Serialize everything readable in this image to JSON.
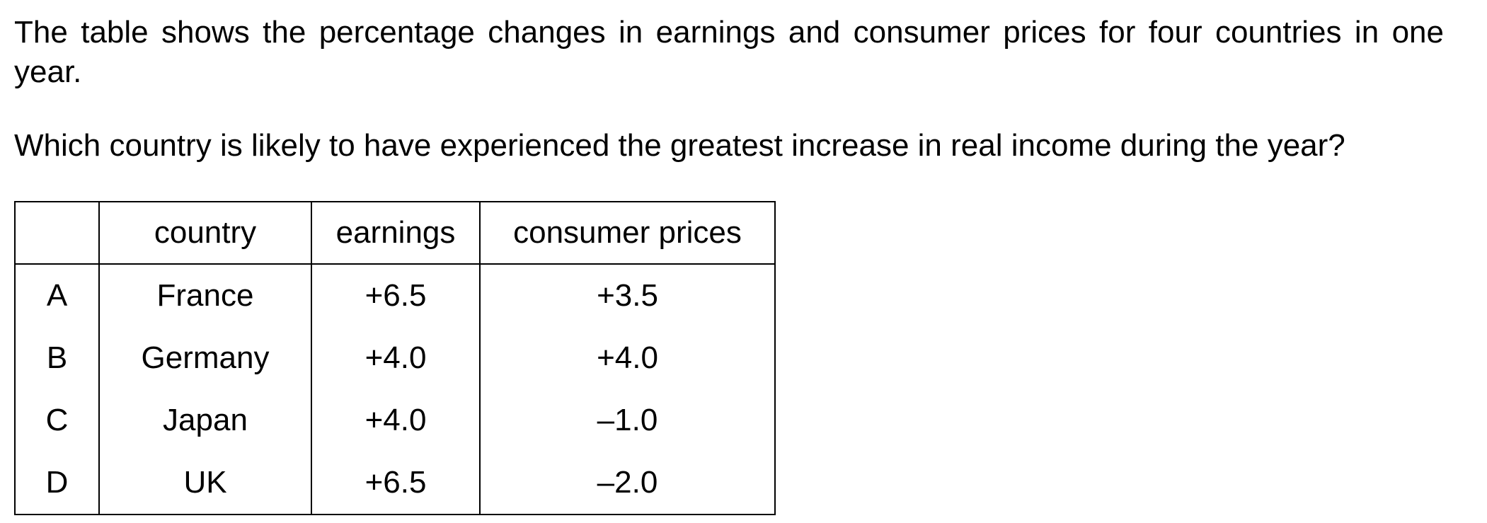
{
  "intro": "The table shows the percentage changes in earnings and consumer prices for four countries in one year.",
  "question": "Which country is likely to have experienced the greatest increase in real income during the year?",
  "table": {
    "headers": [
      "",
      "country",
      "earnings",
      "consumer prices"
    ],
    "rows": [
      {
        "letter": "A",
        "country": "France",
        "earnings": "+6.5",
        "prices": "+3.5"
      },
      {
        "letter": "B",
        "country": "Germany",
        "earnings": "+4.0",
        "prices": "+4.0"
      },
      {
        "letter": "C",
        "country": "Japan",
        "earnings": "+4.0",
        "prices": "–1.0"
      },
      {
        "letter": "D",
        "country": "UK",
        "earnings": "+6.5",
        "prices": "–2.0"
      }
    ]
  }
}
